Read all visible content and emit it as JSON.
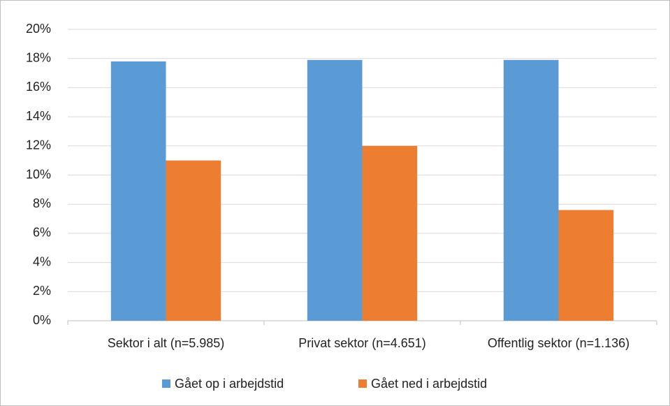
{
  "chart_data": {
    "type": "bar",
    "categories": [
      "Sektor i alt (n=5.985)",
      "Privat sektor (n=4.651)",
      "Offentlig sektor (n=1.136)"
    ],
    "series": [
      {
        "name": "Gået op i arbejdstid",
        "color": "#5b9bd5",
        "values": [
          17.8,
          17.9,
          17.9
        ]
      },
      {
        "name": "Gået ned i arbejdstid",
        "color": "#ed7d31",
        "values": [
          11.0,
          12.0,
          7.6
        ]
      }
    ],
    "ylim": [
      0,
      20
    ],
    "yticks": [
      {
        "value": 0,
        "label": "0%"
      },
      {
        "value": 2,
        "label": "2%"
      },
      {
        "value": 4,
        "label": "4%"
      },
      {
        "value": 6,
        "label": "6%"
      },
      {
        "value": 8,
        "label": "8%"
      },
      {
        "value": 10,
        "label": "10%"
      },
      {
        "value": 12,
        "label": "12%"
      },
      {
        "value": 14,
        "label": "14%"
      },
      {
        "value": 16,
        "label": "16%"
      },
      {
        "value": 18,
        "label": "18%"
      },
      {
        "value": 20,
        "label": "20%"
      }
    ],
    "grid": true,
    "legend": "bottom"
  }
}
